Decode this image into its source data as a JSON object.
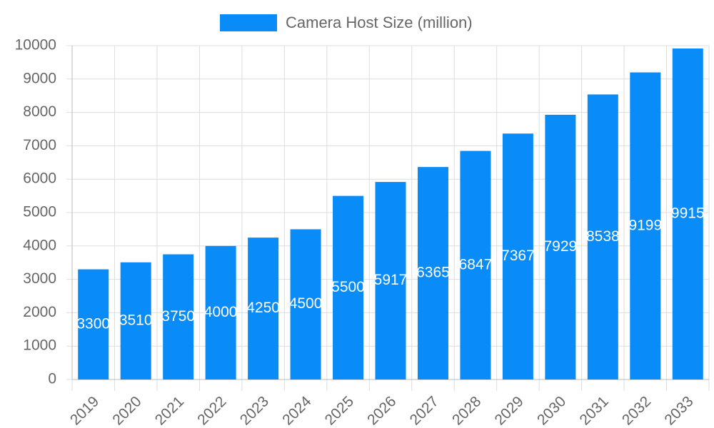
{
  "chart_data": {
    "type": "bar",
    "categories": [
      "2019",
      "2020",
      "2021",
      "2022",
      "2023",
      "2024",
      "2025",
      "2026",
      "2027",
      "2028",
      "2029",
      "2030",
      "2031",
      "2032",
      "2033"
    ],
    "series": [
      {
        "name": "Camera Host Size (million)",
        "color": "#0a8cf8",
        "values": [
          3300,
          3510,
          3750,
          4000,
          4250,
          4500,
          5500,
          5917,
          6365,
          6847,
          7367,
          7929,
          8538,
          9199,
          9915
        ]
      }
    ],
    "ylim": [
      0,
      10000
    ],
    "yticks": [
      0,
      1000,
      2000,
      3000,
      4000,
      5000,
      6000,
      7000,
      8000,
      9000,
      10000
    ],
    "grid": true,
    "legend": "top",
    "data_labels": true
  }
}
